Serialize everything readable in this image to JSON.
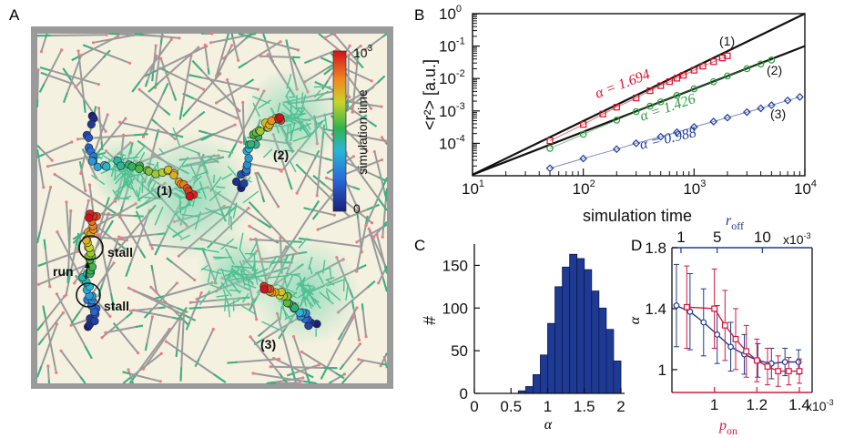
{
  "colors": {
    "red": "#d6122a",
    "green": "#2c9b3a",
    "blue": "#1f3c96",
    "panelD_blue": "#1e3a8f",
    "panelD_red": "#d11a40",
    "bar": "#1f3a93"
  },
  "panels": {
    "A": {
      "label": "A",
      "colorbar": {
        "label": "simulation time",
        "top": "10",
        "top_exp": "3",
        "bottom": "0"
      },
      "annotations": {
        "t1": "(1)",
        "t2": "(2)",
        "t3": "(3)",
        "stall1": "stall",
        "stall2": "stall",
        "run": "run"
      }
    },
    "B": {
      "label": "B",
      "chart_data": {
        "type": "scatter",
        "xlabel": "simulation time",
        "ylabel": "<r²> [a.u.]",
        "xscale": "log",
        "yscale": "log",
        "xlim": [
          10,
          10000
        ],
        "ylim": [
          1e-05,
          1
        ],
        "xticks": [
          {
            "b": "10",
            "e": "1"
          },
          {
            "b": "10",
            "e": "2"
          },
          {
            "b": "10",
            "e": "3"
          },
          {
            "b": "10",
            "e": "4"
          }
        ],
        "yticks": [
          {
            "b": "10",
            "e": "0"
          },
          {
            "b": "10",
            "e": "-1"
          },
          {
            "b": "10",
            "e": "-2"
          },
          {
            "b": "10",
            "e": "-3"
          },
          {
            "b": "10",
            "e": "-4"
          }
        ],
        "series": [
          {
            "name": "(1)",
            "alpha_label": "α = 1.694",
            "marker": "square",
            "color": "#d6122a",
            "x": [
              50,
              100,
              150,
              200,
              300,
              400,
              500,
              600,
              700,
              800,
              1000,
              1200,
              1500,
              1800,
              2000
            ],
            "y": [
              0.00012,
              0.00038,
              0.0008,
              0.0013,
              0.0025,
              0.0042,
              0.006,
              0.008,
              0.0102,
              0.0125,
              0.018,
              0.024,
              0.033,
              0.043,
              0.05
            ]
          },
          {
            "name": "(2)",
            "alpha_label": "α = 1.426",
            "marker": "circle",
            "color": "#2c9b3a",
            "x": [
              50,
              100,
              200,
              300,
              400,
              500,
              700,
              1000,
              1500,
              2000,
              3000,
              4000,
              5000
            ],
            "y": [
              7e-05,
              0.00019,
              0.00052,
              0.00095,
              0.0014,
              0.0019,
              0.003,
              0.0048,
              0.008,
              0.012,
              0.02,
              0.028,
              0.037
            ]
          },
          {
            "name": "(3)",
            "alpha_label": "α = 0.988",
            "marker": "diamond",
            "color": "#1f3c96",
            "x": [
              50,
              100,
              200,
              300,
              500,
              700,
              1000,
              1500,
              2000,
              3000,
              4000,
              5000,
              7000,
              9000
            ],
            "y": [
              1.7e-05,
              3.4e-05,
              6.6e-05,
              0.0001,
              0.00016,
              0.00022,
              0.00032,
              0.00047,
              0.00062,
              0.00092,
              0.0012,
              0.0015,
              0.0021,
              0.0027
            ]
          }
        ],
        "fit_lines": [
          {
            "x": [
              10,
              10000
            ],
            "y": [
              1.08e-05,
              1
            ]
          },
          {
            "x": [
              10,
              10000
            ],
            "y": [
              1.08e-05,
              0.1
            ]
          }
        ]
      }
    },
    "C": {
      "label": "C",
      "chart_data": {
        "type": "bar",
        "xlabel": "α",
        "ylabel": "#",
        "xlim": [
          0,
          2
        ],
        "ylim": [
          0,
          175
        ],
        "xticks": [
          "0",
          "0.5",
          "1",
          "1.5",
          "2"
        ],
        "yticks": [
          "0",
          "50",
          "100",
          "150"
        ],
        "bin_width": 0.1,
        "bin_starts": [
          0.6,
          0.7,
          0.8,
          0.9,
          1.0,
          1.1,
          1.2,
          1.3,
          1.4,
          1.5,
          1.6,
          1.7,
          1.8,
          1.9
        ],
        "values": [
          3,
          8,
          22,
          45,
          82,
          125,
          148,
          163,
          158,
          145,
          120,
          100,
          75,
          38
        ]
      }
    },
    "D": {
      "label": "D",
      "chart_data": {
        "type": "line",
        "ylabel": "α",
        "ylim": [
          0.85,
          1.8
        ],
        "yticks": [
          "1",
          "1.4",
          "1.8"
        ],
        "top_axis": {
          "label": "r",
          "sub": "off",
          "ticks": [
            "1",
            "5",
            "10"
          ],
          "exp_text": "x10",
          "exp": "-3",
          "xlim": [
            0,
            15.5
          ]
        },
        "bottom_axis": {
          "label": "p",
          "sub": "on",
          "ticks": [
            "1",
            "1.2",
            "1.4"
          ],
          "exp_text": "x10",
          "exp": "-3",
          "xlim": [
            0.8,
            1.46
          ]
        },
        "series": [
          {
            "name": "r_off",
            "color": "#1e3a8f",
            "marker": "circle",
            "axis": "top",
            "x": [
              0.5,
              2,
              3.5,
              5,
              6.5,
              8,
              9.5,
              11,
              12.5,
              14
            ],
            "y": [
              1.42,
              1.38,
              1.31,
              1.23,
              1.15,
              1.1,
              1.06,
              1.04,
              1.05,
              1.05
            ],
            "err": [
              0.27,
              0.25,
              0.22,
              0.19,
              0.16,
              0.13,
              0.11,
              0.1,
              0.09,
              0.08
            ]
          },
          {
            "name": "p_on",
            "color": "#d11a40",
            "marker": "square",
            "axis": "bottom",
            "x": [
              0.87,
              1.0,
              1.05,
              1.1,
              1.15,
              1.2,
              1.25,
              1.3,
              1.35,
              1.4
            ],
            "y": [
              1.41,
              1.4,
              1.29,
              1.2,
              1.12,
              1.06,
              1.02,
              0.99,
              0.99,
              0.99
            ],
            "err": [
              0.27,
              0.26,
              0.23,
              0.2,
              0.17,
              0.14,
              0.12,
              0.1,
              0.09,
              0.08
            ]
          }
        ]
      }
    }
  }
}
